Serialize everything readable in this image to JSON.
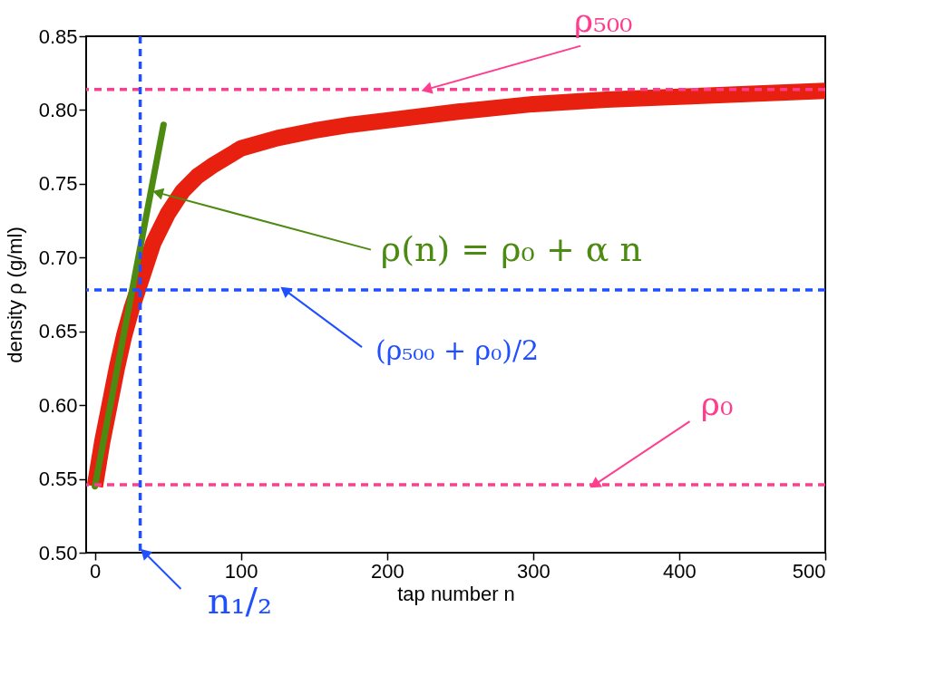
{
  "chart_data": {
    "type": "line",
    "xlabel": "tap number n",
    "ylabel": "density ρ (g/ml)",
    "xlim": [
      -6,
      500
    ],
    "ylim": [
      0.5,
      0.85
    ],
    "xticks": [
      0,
      100,
      200,
      300,
      400,
      500
    ],
    "yticks": [
      {
        "value": 0.5,
        "label": "0.50"
      },
      0.55,
      {
        "value": 0.6,
        "label": "0.60"
      },
      0.65,
      {
        "value": 0.7,
        "label": "0.70"
      },
      0.75,
      {
        "value": 0.8,
        "label": "0.80"
      },
      0.85
    ],
    "grid": false,
    "marker": "none",
    "line_style": "solid",
    "series": [
      {
        "color": "#e8200f",
        "x": [
          0,
          5,
          10,
          15,
          20,
          25,
          30,
          40,
          50,
          60,
          70,
          80,
          100,
          125,
          150,
          175,
          200,
          250,
          300,
          350,
          400,
          450,
          500
        ],
        "values": [
          0.545,
          0.575,
          0.6,
          0.625,
          0.647,
          0.665,
          0.68,
          0.71,
          0.73,
          0.745,
          0.755,
          0.762,
          0.774,
          0.781,
          0.786,
          0.79,
          0.793,
          0.799,
          0.804,
          0.807,
          0.809,
          0.811,
          0.813
        ]
      },
      {
        "color": "#4d8a12",
        "x": [
          0,
          47
        ],
        "values": [
          0.545,
          0.79
        ]
      }
    ],
    "ref_lines": [
      {
        "axis": "y",
        "value": 0.814,
        "color": "#ff3d8f",
        "line_style": "dashed"
      },
      {
        "axis": "y",
        "value": 0.546,
        "color": "#ff3d8f",
        "line_style": "dashed"
      },
      {
        "axis": "y",
        "value": 0.678,
        "color": "#1f4fff",
        "line_style": "dashed"
      },
      {
        "axis": "x",
        "value": 31,
        "color": "#1f4fff",
        "line_style": "dashed"
      }
    ],
    "annotations": [
      {
        "text": "ρ₅₀₀",
        "x": 227,
        "y": 0.814
      },
      {
        "text": "ρ(n) = ρ₀ + α n",
        "x": 43,
        "y": 0.744
      },
      {
        "text": "(ρ₅₀₀ + ρ₀)/2",
        "x": 130,
        "y": 0.678
      },
      {
        "text": "ρ₀",
        "x": 342,
        "y": 0.546
      },
      {
        "text": "n₁/₂",
        "x": 34,
        "y": 0.5
      }
    ]
  }
}
